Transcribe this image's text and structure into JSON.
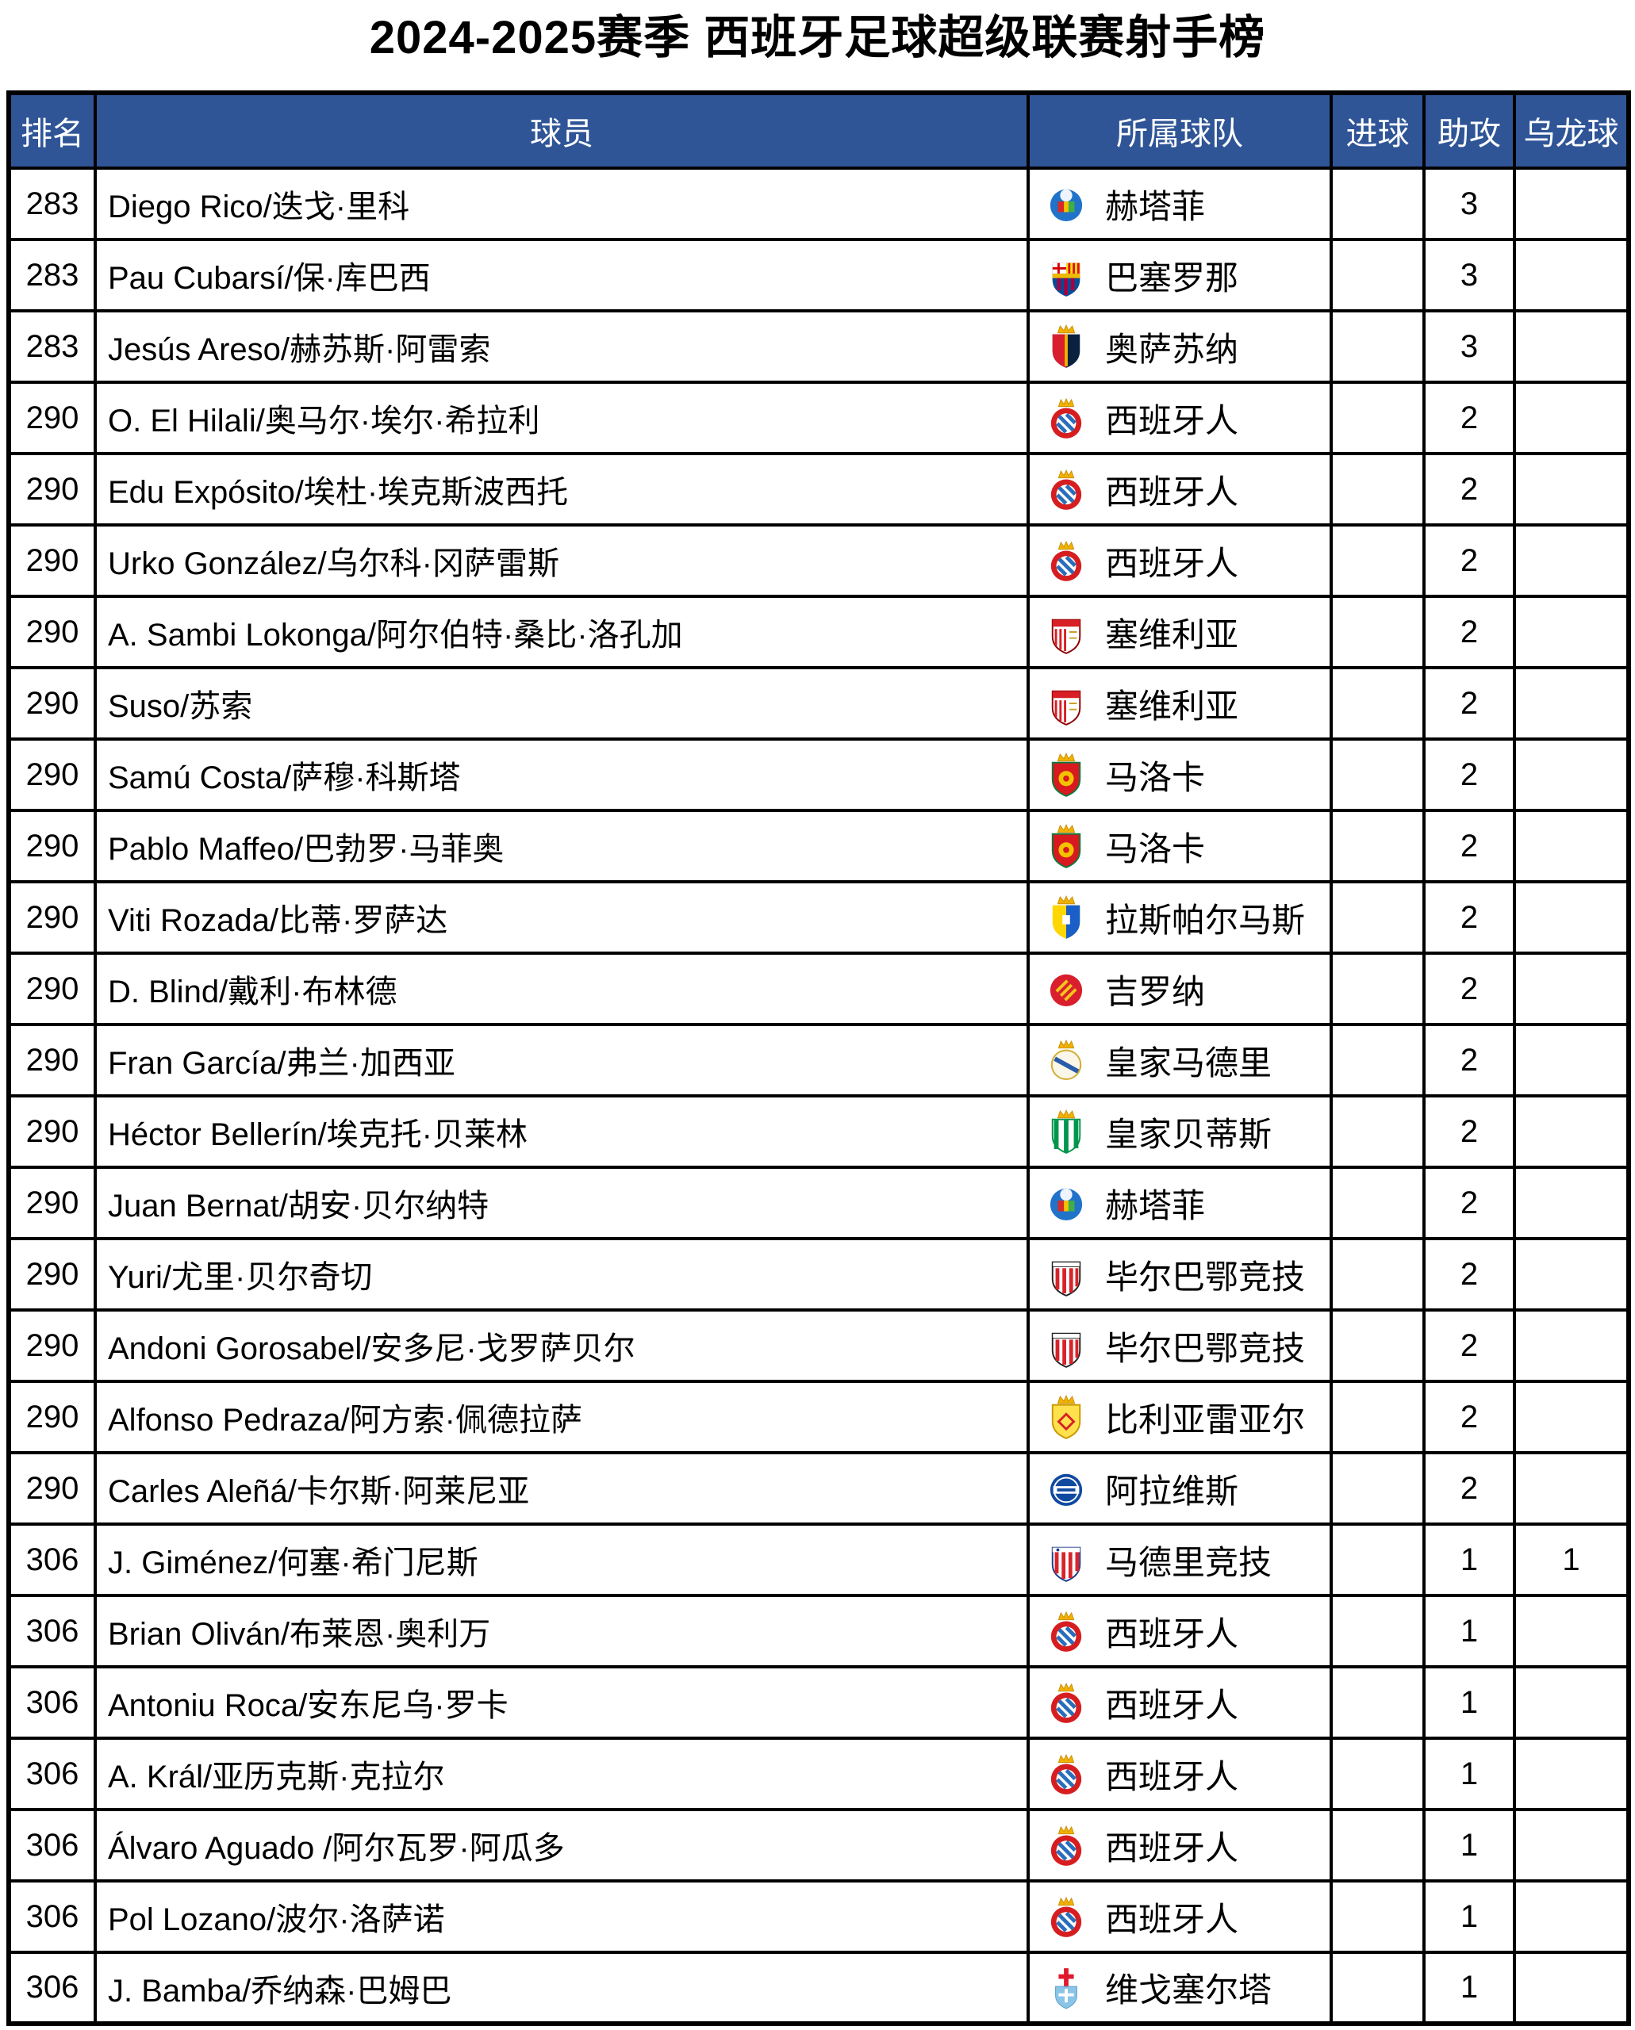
{
  "title": "2024-2025赛季 西班牙足球超级联赛射手榜",
  "colors": {
    "header_bg": "#2F5597",
    "header_text": "#FFFFFF",
    "border": "#000000",
    "row_bg": "#FFFFFF",
    "text": "#000000"
  },
  "table": {
    "headers": {
      "rank": "排名",
      "player": "球员",
      "team": "所属球队",
      "goals": "进球",
      "assists": "助攻",
      "own_goals": "乌龙球"
    },
    "rows": [
      {
        "rank": "283",
        "player": "Diego Rico/迭戈·里科",
        "team": "赫塔菲",
        "logo": "getafe",
        "goals": "",
        "assists": "3",
        "own_goals": ""
      },
      {
        "rank": "283",
        "player": "Pau Cubarsí/保·库巴西",
        "team": "巴塞罗那",
        "logo": "barcelona",
        "goals": "",
        "assists": "3",
        "own_goals": ""
      },
      {
        "rank": "283",
        "player": "Jesús Areso/赫苏斯·阿雷索",
        "team": "奥萨苏纳",
        "logo": "osasuna",
        "goals": "",
        "assists": "3",
        "own_goals": ""
      },
      {
        "rank": "290",
        "player": "O. El Hilali/奥马尔·埃尔·希拉利",
        "team": "西班牙人",
        "logo": "espanyol",
        "goals": "",
        "assists": "2",
        "own_goals": ""
      },
      {
        "rank": "290",
        "player": "Edu Expósito/埃杜·埃克斯波西托",
        "team": "西班牙人",
        "logo": "espanyol",
        "goals": "",
        "assists": "2",
        "own_goals": ""
      },
      {
        "rank": "290",
        "player": "Urko González/乌尔科·冈萨雷斯",
        "team": "西班牙人",
        "logo": "espanyol",
        "goals": "",
        "assists": "2",
        "own_goals": ""
      },
      {
        "rank": "290",
        "player": "A. Sambi Lokonga/阿尔伯特·桑比·洛孔加",
        "team": "塞维利亚",
        "logo": "sevilla",
        "goals": "",
        "assists": "2",
        "own_goals": ""
      },
      {
        "rank": "290",
        "player": "Suso/苏索",
        "team": "塞维利亚",
        "logo": "sevilla",
        "goals": "",
        "assists": "2",
        "own_goals": ""
      },
      {
        "rank": "290",
        "player": "Samú Costa/萨穆·科斯塔",
        "team": "马洛卡",
        "logo": "mallorca",
        "goals": "",
        "assists": "2",
        "own_goals": ""
      },
      {
        "rank": "290",
        "player": "Pablo Maffeo/巴勃罗·马菲奥",
        "team": "马洛卡",
        "logo": "mallorca",
        "goals": "",
        "assists": "2",
        "own_goals": ""
      },
      {
        "rank": "290",
        "player": "Viti Rozada/比蒂·罗萨达",
        "team": "拉斯帕尔马斯",
        "logo": "laspalmas",
        "goals": "",
        "assists": "2",
        "own_goals": ""
      },
      {
        "rank": "290",
        "player": "D. Blind/戴利·布林德",
        "team": "吉罗纳",
        "logo": "girona",
        "goals": "",
        "assists": "2",
        "own_goals": ""
      },
      {
        "rank": "290",
        "player": "Fran García/弗兰·加西亚",
        "team": "皇家马德里",
        "logo": "realmadrid",
        "goals": "",
        "assists": "2",
        "own_goals": ""
      },
      {
        "rank": "290",
        "player": "Héctor Bellerín/埃克托·贝莱林",
        "team": "皇家贝蒂斯",
        "logo": "betis",
        "goals": "",
        "assists": "2",
        "own_goals": ""
      },
      {
        "rank": "290",
        "player": "Juan Bernat/胡安·贝尔纳特",
        "team": "赫塔菲",
        "logo": "getafe",
        "goals": "",
        "assists": "2",
        "own_goals": ""
      },
      {
        "rank": "290",
        "player": "Yuri/尤里·贝尔奇切",
        "team": "毕尔巴鄂竞技",
        "logo": "athletic",
        "goals": "",
        "assists": "2",
        "own_goals": ""
      },
      {
        "rank": "290",
        "player": "Andoni Gorosabel/安多尼·戈罗萨贝尔",
        "team": "毕尔巴鄂竞技",
        "logo": "athletic",
        "goals": "",
        "assists": "2",
        "own_goals": ""
      },
      {
        "rank": "290",
        "player": "Alfonso Pedraza/阿方索·佩德拉萨",
        "team": "比利亚雷亚尔",
        "logo": "villarreal",
        "goals": "",
        "assists": "2",
        "own_goals": ""
      },
      {
        "rank": "290",
        "player": "Carles Aleñá/卡尔斯·阿莱尼亚",
        "team": "阿拉维斯",
        "logo": "alaves",
        "goals": "",
        "assists": "2",
        "own_goals": ""
      },
      {
        "rank": "306",
        "player": "J. Giménez/何塞·希门尼斯",
        "team": "马德里竞技",
        "logo": "atletico",
        "goals": "",
        "assists": "1",
        "own_goals": "1"
      },
      {
        "rank": "306",
        "player": "Brian Oliván/布莱恩·奥利万",
        "team": "西班牙人",
        "logo": "espanyol",
        "goals": "",
        "assists": "1",
        "own_goals": ""
      },
      {
        "rank": "306",
        "player": "Antoniu Roca/安东尼乌·罗卡",
        "team": "西班牙人",
        "logo": "espanyol",
        "goals": "",
        "assists": "1",
        "own_goals": ""
      },
      {
        "rank": "306",
        "player": "A. Král/亚历克斯·克拉尔",
        "team": "西班牙人",
        "logo": "espanyol",
        "goals": "",
        "assists": "1",
        "own_goals": ""
      },
      {
        "rank": "306",
        "player": "Álvaro Aguado /阿尔瓦罗·阿瓜多",
        "team": "西班牙人",
        "logo": "espanyol",
        "goals": "",
        "assists": "1",
        "own_goals": ""
      },
      {
        "rank": "306",
        "player": "Pol Lozano/波尔·洛萨诺",
        "team": "西班牙人",
        "logo": "espanyol",
        "goals": "",
        "assists": "1",
        "own_goals": ""
      },
      {
        "rank": "306",
        "player": "J. Bamba/乔纳森·巴姆巴",
        "team": "维戈塞尔塔",
        "logo": "celta",
        "goals": "",
        "assists": "1",
        "own_goals": ""
      }
    ]
  }
}
